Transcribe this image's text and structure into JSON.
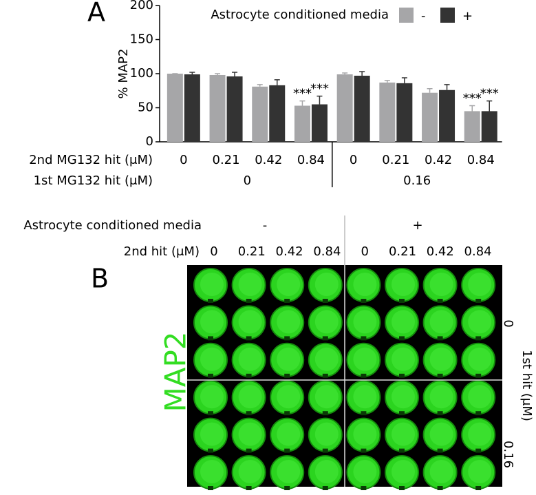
{
  "chart_data": {
    "type": "bar",
    "panel": "A",
    "legend_title": "Astrocyte conditioned media",
    "ylabel": "% MAP2",
    "ylim": [
      0,
      200
    ],
    "yticks": [
      0,
      50,
      100,
      150,
      200
    ],
    "categories": [
      "0",
      "0.21",
      "0.42",
      "0.84",
      "0",
      "0.21",
      "0.42",
      "0.84"
    ],
    "row_labels": [
      "2nd MG132 hit (μM)",
      "1st MG132 hit (μM)"
    ],
    "groups": [
      "0",
      "0.16"
    ],
    "series": [
      {
        "name": "-",
        "color": "#a6a6a8",
        "values": [
          100,
          98,
          81,
          53,
          99,
          87,
          72,
          45
        ],
        "errors": [
          0,
          2,
          3,
          7,
          2,
          3,
          6,
          8
        ],
        "significance": [
          null,
          null,
          null,
          "***",
          null,
          null,
          null,
          "***"
        ]
      },
      {
        "name": "+",
        "color": "#333333",
        "values": [
          99,
          96,
          83,
          55,
          97,
          86,
          76,
          45
        ],
        "errors": [
          3,
          6,
          8,
          12,
          6,
          8,
          8,
          15
        ],
        "significance": [
          null,
          null,
          null,
          "***",
          null,
          null,
          null,
          "***"
        ]
      }
    ]
  },
  "panel_b": {
    "letter": "B",
    "media_label": "Astrocyte conditioned media",
    "media": [
      "-",
      "+"
    ],
    "hit2_label": "2nd hit (μM)",
    "columns": [
      "0",
      "0.21",
      "0.42",
      "0.84",
      "0",
      "0.21",
      "0.42",
      "0.84"
    ],
    "stain": "MAP2",
    "hit1_label": "1st hit (μM)",
    "rows": [
      "0",
      "0.16"
    ]
  }
}
